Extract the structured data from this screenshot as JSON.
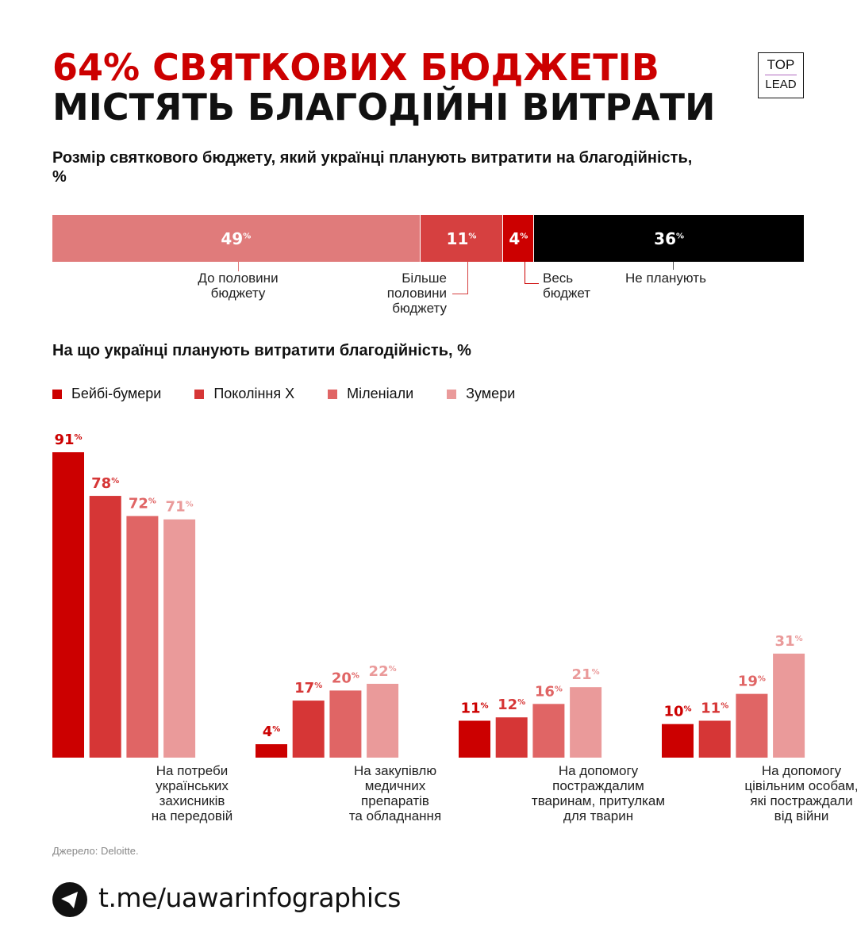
{
  "header": {
    "title_line1": "64% СВЯТКОВИХ БЮДЖЕТІВ",
    "title_line2": "МІСТЯТЬ БЛАГОДІЙНІ ВИТРАТИ",
    "logo_top": "TOP",
    "logo_bottom": "LEAD"
  },
  "colors": {
    "accent": "#cc0000",
    "black": "#000000"
  },
  "chart_data": [
    {
      "type": "bar",
      "subtype": "stacked-horizontal",
      "title": "Розмір святкового бюджету, який українці планують витратити на благодійність, %",
      "categories": [
        "До половини бюджету",
        "Більше половини бюджету",
        "Весь бюджет",
        "Не планують"
      ],
      "values": [
        49,
        11,
        4,
        36
      ],
      "labels": [
        "49",
        "11",
        "4",
        "36"
      ],
      "colors": [
        "#e07b7b",
        "#d64040",
        "#cc0000",
        "#000000"
      ]
    },
    {
      "type": "bar",
      "title": "На що українці планують витратити благодійність, %",
      "legend": "top-left",
      "grid": false,
      "ylim": [
        0,
        100
      ],
      "categories": [
        "На потреби українських захисників на передовій",
        "На закупівлю медичних препаратів та обладнання",
        "На допомогу постраждалим тваринам, притулкам для тварин",
        "На допомогу цівільним особам, які постраждали від війни"
      ],
      "series": [
        {
          "name": "Бейбі-бумери",
          "values": [
            91,
            4,
            11,
            10
          ],
          "color": "#cc0000"
        },
        {
          "name": "Покоління Х",
          "values": [
            78,
            17,
            12,
            11
          ],
          "color": "#d63636"
        },
        {
          "name": "Міленіали",
          "values": [
            72,
            20,
            16,
            19
          ],
          "color": "#e06565"
        },
        {
          "name": "Зумери",
          "values": [
            71,
            22,
            21,
            31
          ],
          "color": "#ea9a9a"
        }
      ]
    }
  ],
  "category_lines": [
    [
      "На потреби",
      "українських",
      "захисників",
      "на передовій"
    ],
    [
      "На закупівлю",
      "медичних",
      "препаратів",
      "та обладнання"
    ],
    [
      "На допомогу",
      "постраждалим",
      "тваринам, притулкам",
      "для тварин"
    ],
    [
      "На допомогу",
      "цівільним особам,",
      "які постраждали",
      "від війни"
    ]
  ],
  "stack_label_lines": [
    [
      "До половини",
      "бюджету"
    ],
    [
      "Більше",
      "половини",
      "бюджету"
    ],
    [
      "Весь",
      "бюджет"
    ],
    [
      "Не планують"
    ]
  ],
  "percent_sign": "%",
  "source": "Джерело: Deloitte.",
  "footer": {
    "link": "t.me/uawarinfographics",
    "icon": "telegram-icon"
  }
}
